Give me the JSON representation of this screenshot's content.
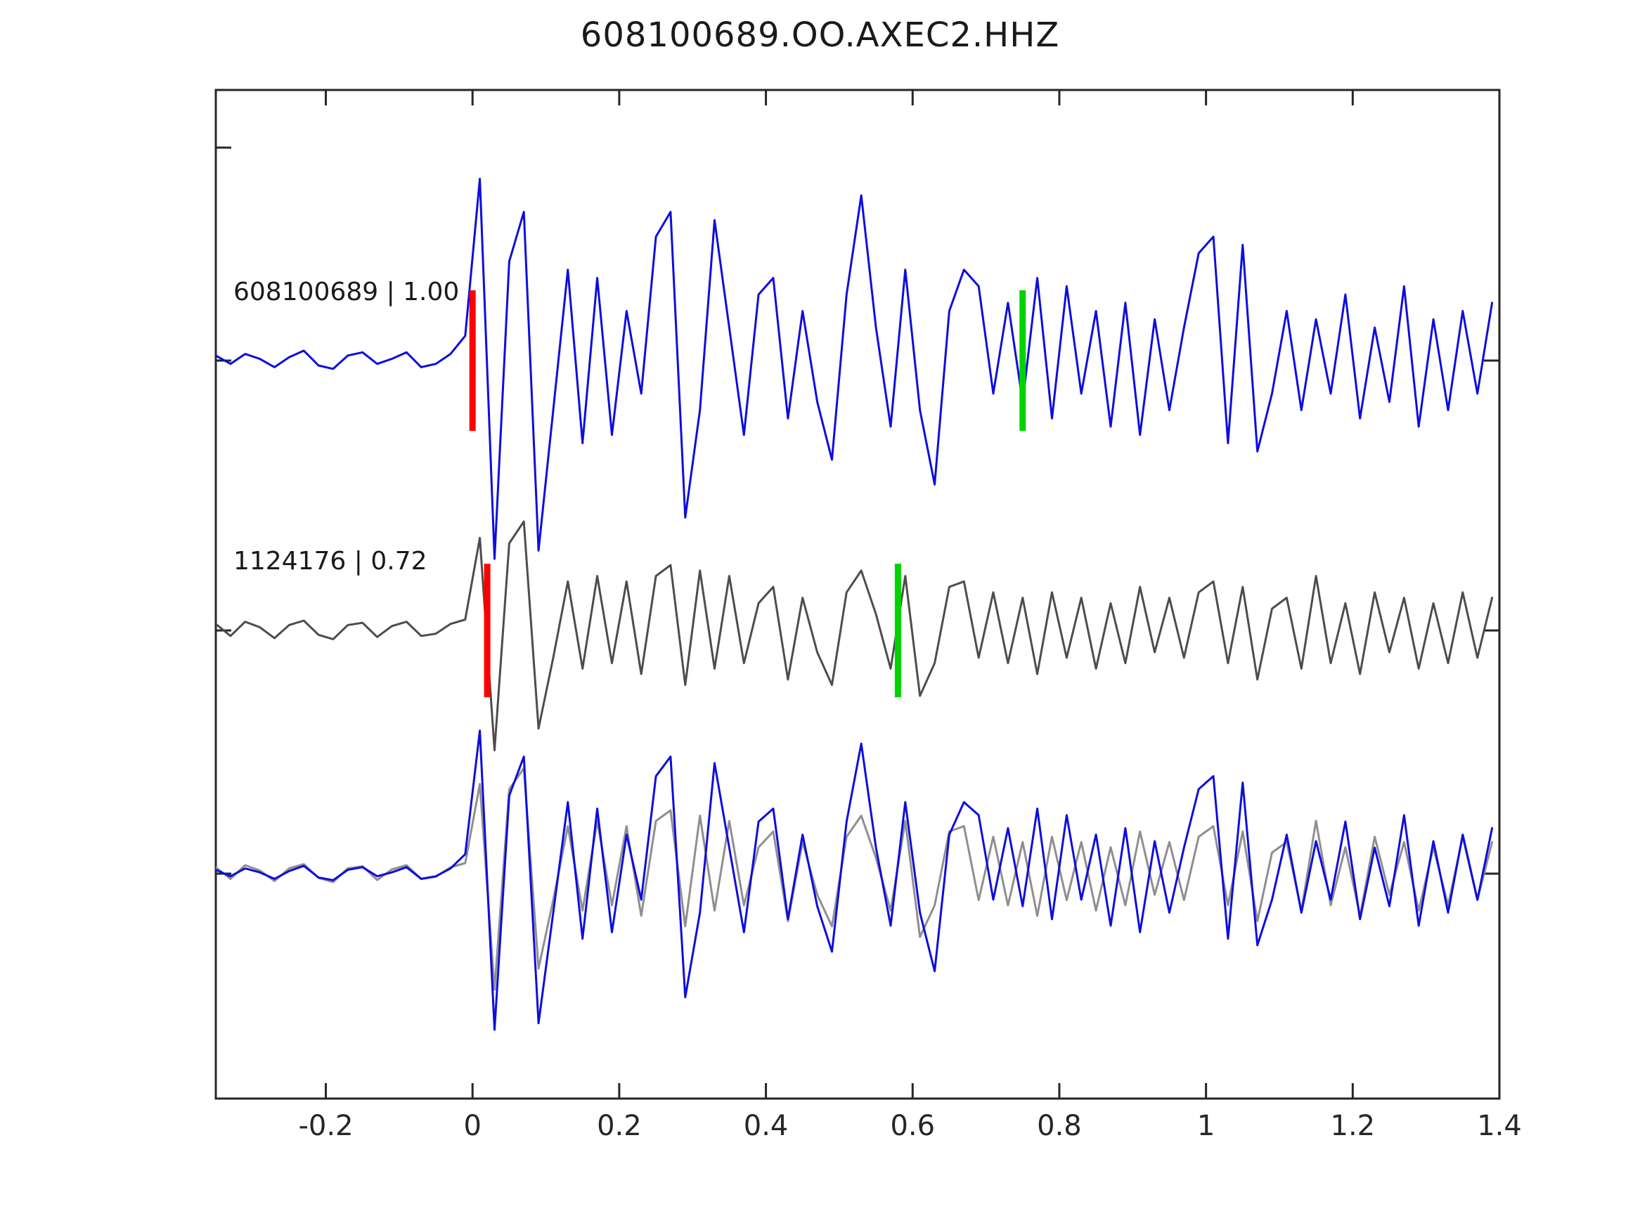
{
  "title": "608100689.OO.AXEC2.HHZ",
  "colors": {
    "template_blue": "#0d0de0",
    "detection_gray": "#4d4d4d",
    "overlay_gray": "#8f8f8f",
    "pick_red": "#ff0000",
    "pick_green": "#00d400",
    "axis": "#262626",
    "tick_text": "#262626"
  },
  "chart_data": {
    "type": "line",
    "title": "608100689.OO.AXEC2.HHZ",
    "xlabel": "",
    "ylabel": "",
    "grid": false,
    "legend": "none",
    "x_range": [
      -0.35,
      1.4
    ],
    "x_ticks": [
      -0.2,
      0,
      0.2,
      0.4,
      0.6,
      0.8,
      1,
      1.2,
      1.4
    ],
    "x_tick_labels": [
      "-0.2",
      "0",
      "0.2",
      "0.4",
      "0.6",
      "0.8",
      "1",
      "1.2",
      "1.4"
    ],
    "sampling": {
      "x0": -0.35,
      "dx": 0.02
    },
    "traces": {
      "template": {
        "id": "608100689",
        "correlation": "1.00",
        "y": [
          0.03,
          -0.02,
          0.04,
          0.01,
          -0.04,
          0.02,
          0.06,
          -0.03,
          -0.05,
          0.03,
          0.05,
          -0.02,
          0.01,
          0.05,
          -0.04,
          -0.02,
          0.04,
          0.15,
          1.1,
          -1.2,
          0.6,
          0.9,
          -1.15,
          -0.3,
          0.55,
          -0.5,
          0.5,
          -0.45,
          0.3,
          -0.2,
          0.75,
          0.9,
          -0.95,
          -0.3,
          0.85,
          0.2,
          -0.45,
          0.4,
          0.5,
          -0.35,
          0.3,
          -0.25,
          -0.6,
          0.4,
          1.0,
          0.2,
          -0.4,
          0.55,
          -0.3,
          -0.75,
          0.3,
          0.55,
          0.45,
          -0.2,
          0.35,
          -0.25,
          0.5,
          -0.35,
          0.45,
          -0.2,
          0.3,
          -0.4,
          0.35,
          -0.45,
          0.25,
          -0.3,
          0.2,
          0.65,
          0.75,
          -0.5,
          0.7,
          -0.55,
          -0.2,
          0.3,
          -0.3,
          0.25,
          -0.2,
          0.4,
          -0.35,
          0.2,
          -0.25,
          0.45,
          -0.4,
          0.25,
          -0.3,
          0.3,
          -0.2,
          0.35
        ]
      },
      "detection": {
        "id": "1124176",
        "correlation": "0.72",
        "y": [
          0.06,
          -0.05,
          0.08,
          0.03,
          -0.07,
          0.05,
          0.09,
          -0.04,
          -0.08,
          0.05,
          0.07,
          -0.06,
          0.04,
          0.08,
          -0.05,
          -0.03,
          0.06,
          0.1,
          0.85,
          -1.1,
          0.8,
          1.0,
          -0.9,
          -0.25,
          0.45,
          -0.35,
          0.5,
          -0.3,
          0.45,
          -0.4,
          0.5,
          0.6,
          -0.5,
          0.55,
          -0.35,
          0.5,
          -0.3,
          0.25,
          0.4,
          -0.45,
          0.3,
          -0.2,
          -0.5,
          0.35,
          0.55,
          0.15,
          -0.35,
          0.5,
          -0.6,
          -0.3,
          0.4,
          0.45,
          -0.25,
          0.35,
          -0.3,
          0.3,
          -0.4,
          0.35,
          -0.25,
          0.3,
          -0.35,
          0.25,
          -0.3,
          0.4,
          -0.2,
          0.3,
          -0.25,
          0.35,
          0.45,
          -0.3,
          0.4,
          -0.45,
          0.2,
          0.3,
          -0.35,
          0.5,
          -0.3,
          0.25,
          -0.4,
          0.35,
          -0.2,
          0.3,
          -0.35,
          0.25,
          -0.3,
          0.35,
          -0.25,
          0.3
        ]
      }
    },
    "rows": [
      {
        "label": "608100689 | 1.00",
        "series": [
          {
            "trace": "template",
            "color": "template_blue"
          }
        ],
        "picks": [
          {
            "color": "pick_red",
            "x": 0.0
          },
          {
            "color": "pick_green",
            "x": 0.75
          }
        ]
      },
      {
        "label": "1124176 | 0.72",
        "series": [
          {
            "trace": "detection",
            "color": "detection_gray"
          }
        ],
        "picks": [
          {
            "color": "pick_red",
            "x": 0.02
          },
          {
            "color": "pick_green",
            "x": 0.58
          }
        ]
      },
      {
        "label": "",
        "series": [
          {
            "trace": "detection",
            "color": "overlay_gray"
          },
          {
            "trace": "template",
            "color": "template_blue"
          }
        ],
        "picks": []
      }
    ]
  }
}
